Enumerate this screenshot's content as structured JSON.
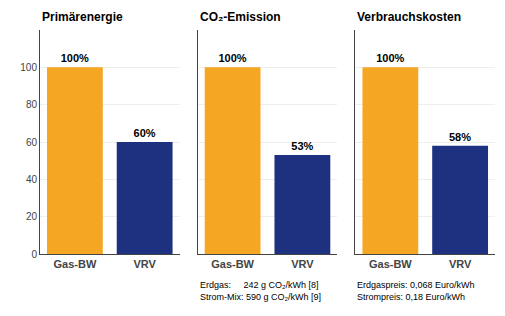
{
  "chart_data": [
    {
      "type": "bar",
      "title": "Primärenergie",
      "categories": [
        "Gas-BW",
        "VRV"
      ],
      "values": [
        100,
        60
      ],
      "value_labels": [
        "100%",
        "60%"
      ],
      "colors": [
        "#F5A623",
        "#1E3080"
      ],
      "ylim": [
        0,
        120
      ],
      "yticks": [
        0,
        20,
        40,
        60,
        80,
        100
      ],
      "grid": true
    },
    {
      "type": "bar",
      "title": "CO₂-Emission",
      "categories": [
        "Gas-BW",
        "VRV"
      ],
      "values": [
        100,
        53
      ],
      "value_labels": [
        "100%",
        "53%"
      ],
      "colors": [
        "#F5A623",
        "#1E3080"
      ],
      "ylim": [
        0,
        120
      ],
      "yticks": [
        0,
        20,
        40,
        60,
        80,
        100
      ],
      "grid": true,
      "tick_labels": "x",
      "annotations": [
        "Erdgas:     242 g CO₂/kWh [8]",
        "Strom-Mix: 590 g CO₂/kWh [9]"
      ]
    },
    {
      "type": "bar",
      "title": "Verbrauchskosten",
      "categories": [
        "Gas-BW",
        "VRV"
      ],
      "values": [
        100,
        58
      ],
      "value_labels": [
        "100%",
        "58%"
      ],
      "colors": [
        "#F5A623",
        "#1E3080"
      ],
      "ylim": [
        0,
        120
      ],
      "yticks": [
        0,
        20,
        40,
        60,
        80,
        100
      ],
      "grid": true,
      "tick_labels": "x",
      "annotations": [
        "Erdgaspreis: 0,068 Euro/kWh",
        "Strompreis: 0,18 Euro/kWh"
      ]
    }
  ]
}
